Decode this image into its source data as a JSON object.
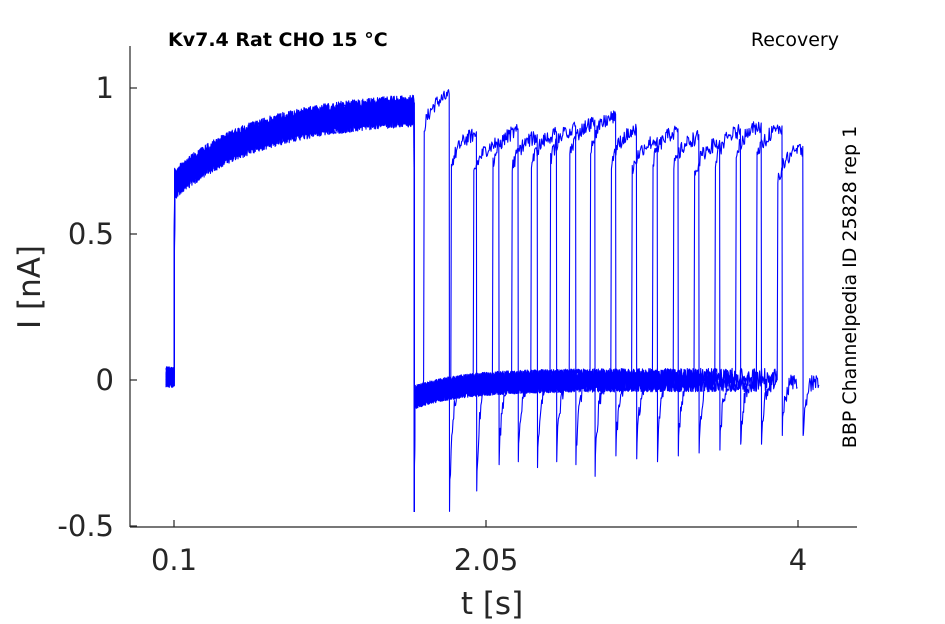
{
  "title": "Kv7.4  Rat  CHO  15 °C",
  "protocol": "Recovery",
  "side_label": "BBP Channelpedia ID 25828 rep 1",
  "colors": {
    "trace": "#0000ff",
    "axis": "#262626"
  },
  "chart_data": {
    "type": "line",
    "xlabel": "t [s]",
    "ylabel": "I [nA]",
    "xlim": [
      -0.17,
      4.37
    ],
    "ylim": [
      -0.5,
      1.15
    ],
    "x_ticks": [
      0.1,
      2.05,
      4
    ],
    "x_tick_labels": [
      "0.1",
      "2.05",
      "4"
    ],
    "y_ticks": [
      -0.5,
      0,
      0.5,
      1
    ],
    "y_tick_labels": [
      "-0.5",
      "0",
      "0.5",
      "1"
    ],
    "grid": false,
    "legend": "none",
    "baseline_start": 0.05,
    "step_on": 0.1,
    "prepulse_off": 1.6,
    "level_on_initial": 0.68,
    "level_on_final": 0.95,
    "test_pulse_onsets": [
      1.66,
      1.83,
      1.97,
      2.09,
      2.21,
      2.33,
      2.45,
      2.57,
      2.7,
      2.83,
      2.96,
      3.09,
      3.22,
      3.35,
      3.48,
      3.61,
      3.74,
      3.87
    ],
    "test_pulse_peaks": [
      0.98,
      0.85,
      0.82,
      0.86,
      0.84,
      0.85,
      0.87,
      0.89,
      0.91,
      0.86,
      0.83,
      0.86,
      0.84,
      0.82,
      0.86,
      0.88,
      0.87,
      0.8
    ],
    "test_pulse_duration": 0.16,
    "tail_dips": [
      -0.45,
      -0.38,
      -0.29,
      -0.28,
      -0.3,
      -0.28,
      -0.29,
      -0.33,
      -0.26,
      -0.27,
      -0.28,
      -0.26,
      -0.25,
      -0.24,
      -0.22,
      -0.22,
      -0.19,
      -0.19
    ]
  }
}
